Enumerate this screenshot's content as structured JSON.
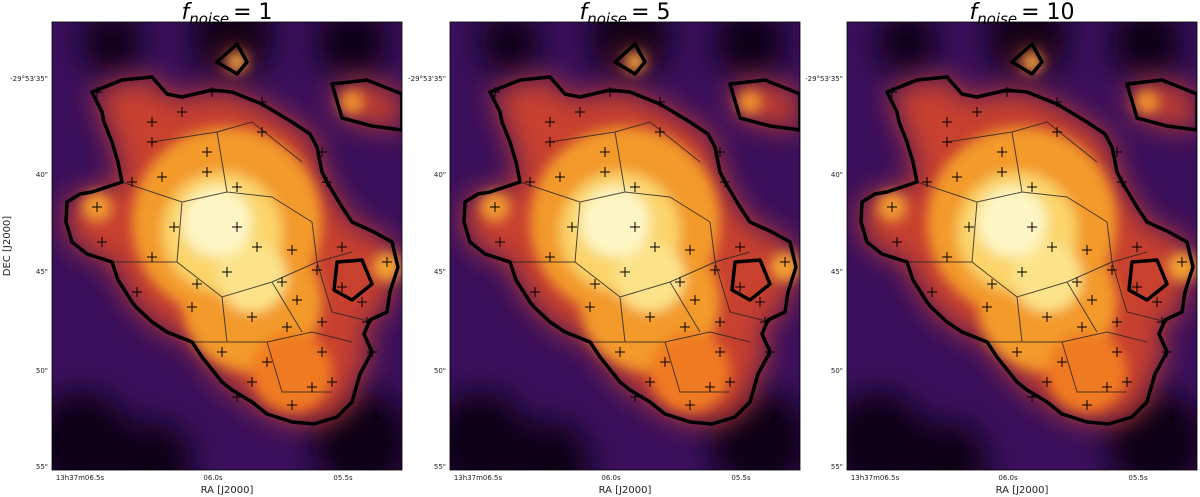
{
  "panels": [
    {
      "title": {
        "symbol": "f",
        "subscript": "noise",
        "rest": "= 1"
      }
    },
    {
      "title": {
        "symbol": "f",
        "subscript": "noise",
        "rest": "= 5"
      }
    },
    {
      "title": {
        "symbol": "f",
        "subscript": "noise",
        "rest": "= 10"
      }
    }
  ],
  "yticks": [
    "-29°53'35\"",
    "40\"",
    "45\"",
    "50\"",
    "55\""
  ],
  "xticks": [
    "13h37m06.5s",
    "06.0s",
    "05.5s"
  ],
  "xlabel": "RA [J2000]",
  "ylabel": "DEC [J2000]"
}
